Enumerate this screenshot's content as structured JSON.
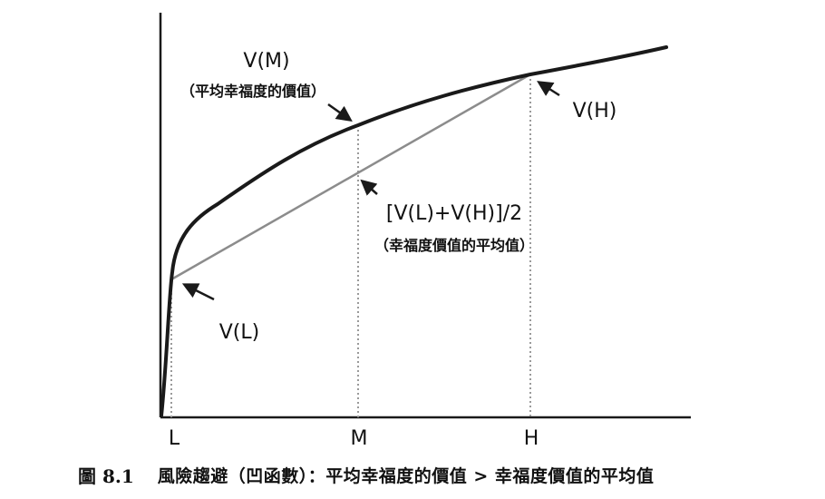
{
  "labels": {
    "vm": "V(M)",
    "vm_note": "（平均幸福度的價值）",
    "vh": "V(H)",
    "avg": "[V(L)+V(H)]/2",
    "avg_note": "（幸福度價值的平均值）",
    "vl": "V(L)"
  },
  "axis": {
    "ticks": [
      "L",
      "M",
      "H"
    ]
  },
  "caption": {
    "number": "圖 8.1",
    "title": "風險趨避（凹函數）：平均幸福度的價值 > 幸福度價值的平均值"
  },
  "colors": {
    "curve": "#1a1a1a",
    "chord": "#8c8c8c",
    "guides": "#9a9a9a",
    "axes": "#1a1a1a"
  }
}
